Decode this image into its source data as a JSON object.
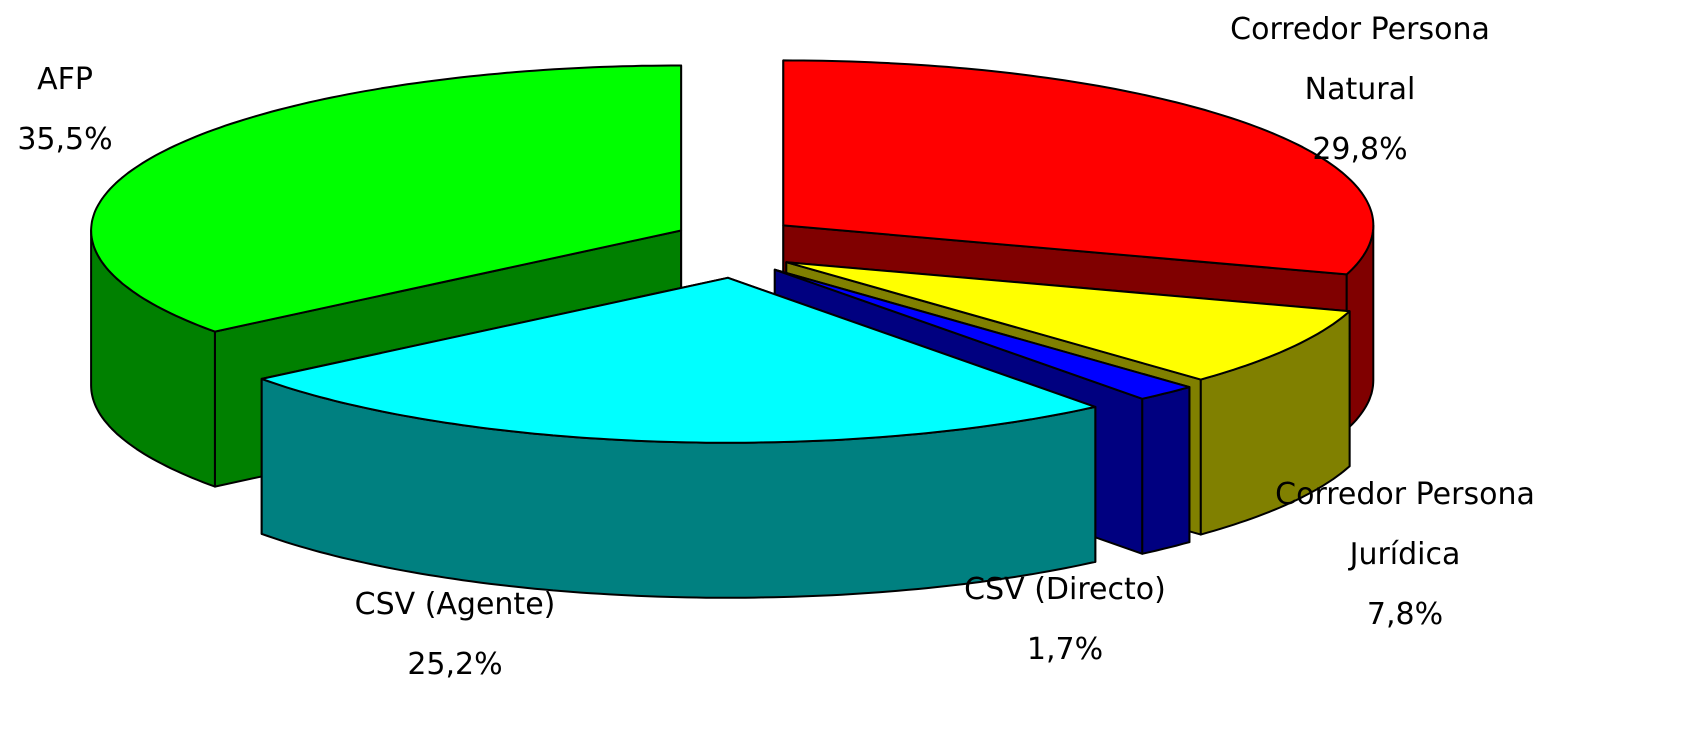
{
  "chart_data": {
    "type": "pie3d",
    "categories": [
      "Corredor Persona Natural",
      "Corredor Persona Jurídica",
      "CSV (Directo)",
      "CSV (Agente)",
      "AFP"
    ],
    "values": [
      29.8,
      7.8,
      1.7,
      25.2,
      35.5
    ],
    "value_labels": [
      "29,8%",
      "7,8%",
      "1,7%",
      "25,2%",
      "35,5%"
    ],
    "colors": [
      "#ff0000",
      "#ffff00",
      "#0000ff",
      "#00ffff",
      "#00ff00"
    ]
  }
}
